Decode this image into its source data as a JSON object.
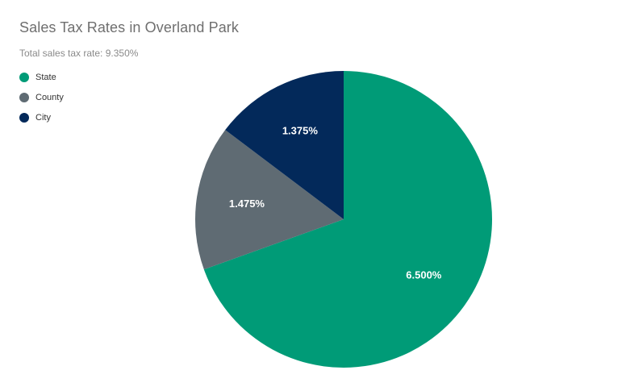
{
  "chart_data": {
    "type": "pie",
    "title": "Sales Tax Rates in Overland Park",
    "subtitle": "Total sales tax rate: 9.350%",
    "legend_position": "top-left",
    "slices": [
      {
        "label": "State",
        "value": 6.5,
        "display": "6.500%",
        "color": "#009b77"
      },
      {
        "label": "County",
        "value": 1.475,
        "display": "1.475%",
        "color": "#5f6b73"
      },
      {
        "label": "City",
        "value": 1.375,
        "display": "1.375%",
        "color": "#03295a"
      }
    ]
  }
}
